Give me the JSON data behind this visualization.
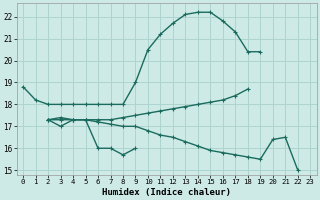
{
  "xlabel": "Humidex (Indice chaleur)",
  "bg_color": "#ceeae6",
  "grid_color": "#aed4d0",
  "line_color": "#1a6b5e",
  "xlim": [
    -0.5,
    23.5
  ],
  "ylim": [
    14.8,
    22.6
  ],
  "yticks": [
    15,
    16,
    17,
    18,
    19,
    20,
    21,
    22
  ],
  "xticks": [
    0,
    1,
    2,
    3,
    4,
    5,
    6,
    7,
    8,
    9,
    10,
    11,
    12,
    13,
    14,
    15,
    16,
    17,
    18,
    19,
    20,
    21,
    22,
    23
  ],
  "line1_x": [
    0,
    1,
    2,
    3,
    4,
    5,
    6,
    7,
    8,
    9,
    10,
    11,
    12,
    13,
    14,
    15,
    16,
    17,
    18,
    19
  ],
  "line1_y": [
    18.8,
    18.2,
    18.0,
    18.0,
    18.0,
    18.0,
    18.0,
    18.0,
    18.0,
    19.0,
    20.5,
    21.2,
    21.7,
    22.1,
    22.2,
    22.2,
    21.8,
    21.3,
    20.4,
    20.4
  ],
  "line2_x": [
    2,
    3,
    4,
    5,
    6,
    7,
    8,
    9
  ],
  "line2_y": [
    17.3,
    17.0,
    17.3,
    17.3,
    16.0,
    16.0,
    15.7,
    16.0
  ],
  "line3_x": [
    2,
    3,
    4,
    5,
    6,
    7,
    8,
    9,
    10,
    11,
    12,
    13,
    14,
    15,
    16,
    17,
    18
  ],
  "line3_y": [
    17.3,
    17.3,
    17.3,
    17.3,
    17.3,
    17.3,
    17.4,
    17.5,
    17.6,
    17.7,
    17.8,
    17.9,
    18.0,
    18.1,
    18.2,
    18.4,
    18.7
  ],
  "line4_x": [
    2,
    3,
    4,
    5,
    6,
    7,
    8,
    9,
    10,
    11,
    12,
    13,
    14,
    15,
    16,
    17,
    18,
    19,
    20,
    21,
    22
  ],
  "line4_y": [
    17.3,
    17.4,
    17.3,
    17.3,
    17.2,
    17.1,
    17.0,
    17.0,
    16.8,
    16.6,
    16.5,
    16.3,
    16.1,
    15.9,
    15.8,
    15.7,
    15.6,
    15.5,
    16.4,
    16.5,
    15.0
  ]
}
